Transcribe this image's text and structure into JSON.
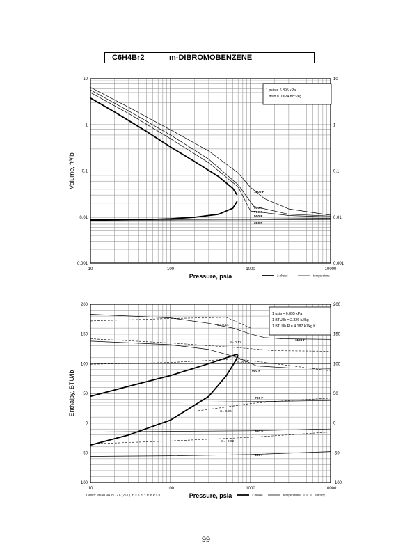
{
  "header": {
    "formula": "C6H4Br2",
    "name": "m-DIBROMOBENZENE"
  },
  "page_number": "99",
  "chart_data": [
    {
      "type": "line",
      "xlabel": "Pressure,  psia",
      "ylabel": "Volume,  ft^3/lb",
      "xscale": "log",
      "yscale": "log",
      "xlim": [
        10,
        10000
      ],
      "ylim": [
        0.001,
        10
      ],
      "x_ticks": [
        "10",
        "100",
        "1000",
        "10000"
      ],
      "y_ticks": [
        "0.001",
        "0.01",
        "0.1",
        "1",
        "10"
      ],
      "grid": true,
      "legend": {
        "position": "bottom-right",
        "entries": [
          "2 phase",
          "temperature"
        ]
      },
      "notes": [
        "1 psia  =  6.895 kPa",
        "1  ft^3/lb  =  .0624 m^3/kg"
      ],
      "curve_labels": [
        "1100 F",
        "900 F",
        "700 F",
        "500 F",
        "300 F"
      ],
      "series": [
        {
          "kind": "2-phase",
          "x": [
            10,
            20,
            50,
            100,
            200,
            400,
            600,
            680
          ],
          "y": [
            3.8,
            1.9,
            0.72,
            0.33,
            0.16,
            0.075,
            0.042,
            0.03
          ]
        },
        {
          "kind": "2-phase",
          "x": [
            10,
            50,
            100,
            200,
            400,
            600,
            680
          ],
          "y": [
            0.0085,
            0.0088,
            0.0092,
            0.0099,
            0.0115,
            0.0155,
            0.022
          ]
        },
        {
          "kind": "temperature",
          "x": [
            10,
            30,
            100,
            300,
            700,
            1000,
            1500,
            3000,
            10000
          ],
          "y": [
            6.5,
            2.4,
            0.78,
            0.27,
            0.09,
            0.044,
            0.025,
            0.015,
            0.011
          ]
        },
        {
          "kind": "temperature",
          "x": [
            10,
            30,
            100,
            300,
            700,
            1100,
            3000,
            10000
          ],
          "y": [
            5.7,
            2.0,
            0.6,
            0.18,
            0.05,
            0.017,
            0.0115,
            0.0105
          ]
        },
        {
          "kind": "temperature",
          "x": [
            10,
            30,
            100,
            300,
            700,
            1000,
            3000,
            10000
          ],
          "y": [
            5.0,
            1.75,
            0.5,
            0.15,
            0.045,
            0.0135,
            0.0108,
            0.0101
          ]
        },
        {
          "kind": "temperature",
          "x": [
            10,
            100,
            1000,
            10000
          ],
          "y": [
            0.0088,
            0.0089,
            0.0091,
            0.0094
          ]
        },
        {
          "kind": "temperature",
          "x": [
            10,
            100,
            1000,
            10000
          ],
          "y": [
            0.0085,
            0.0086,
            0.0087,
            0.0089
          ]
        }
      ]
    },
    {
      "type": "line",
      "xlabel": "Pressure,  psia",
      "ylabel": "Enthalpy,  BTU/lb",
      "xscale": "log",
      "xlim": [
        10,
        10000
      ],
      "ylim": [
        -100,
        200
      ],
      "x_ticks": [
        "10",
        "100",
        "1000",
        "10000"
      ],
      "y_ticks": [
        "-100",
        "-50",
        "0",
        "50",
        "100",
        "150",
        "200"
      ],
      "grid": true,
      "legend": {
        "position": "bottom-right",
        "entries": [
          "2 phase",
          "temperature",
          "entropy"
        ]
      },
      "notes": [
        "1 psia  =  6.895 kPa",
        "1 BTU/lb  =  2.326 kJ/kg",
        "1 BTU/lb R  =  4.187 kJ/kg K"
      ],
      "footnote": "Datum: Ideal Gas @ 77 F (25 C),  H = 0,  S + R ln P = 0",
      "curve_labels": [
        "1100 F",
        "900 F",
        "700 F",
        "500 F",
        "300 F"
      ],
      "entropy_labels": [
        "S= 0.14",
        "S= 0.12",
        "S= 0.1",
        "S= 0.06",
        "S= -0.02"
      ],
      "series": [
        {
          "kind": "2-phase",
          "x": [
            10,
            30,
            100,
            300,
            500,
            650,
            700
          ],
          "y": [
            45,
            62,
            80,
            100,
            110,
            115,
            116
          ]
        },
        {
          "kind": "2-phase",
          "x": [
            10,
            30,
            100,
            300,
            500,
            650,
            700
          ],
          "y": [
            -37,
            -20,
            5,
            45,
            80,
            105,
            114
          ]
        },
        {
          "kind": "temperature",
          "x": [
            10,
            100,
            300,
            600,
            1000,
            1500,
            2500,
            10000
          ],
          "y": [
            183,
            177,
            168,
            160,
            150,
            144,
            142,
            141
          ]
        },
        {
          "kind": "temperature",
          "x": [
            10,
            100,
            300,
            700,
            1200,
            3000,
            10000
          ],
          "y": [
            138,
            132,
            124,
            110,
            96,
            93,
            92
          ]
        },
        {
          "kind": "temperature",
          "x": [
            10,
            100,
            1000,
            10000
          ],
          "y": [
            35,
            35,
            36,
            38
          ]
        },
        {
          "kind": "temperature",
          "x": [
            10,
            100,
            1000,
            10000
          ],
          "y": [
            -15,
            -14,
            -13,
            -10
          ]
        },
        {
          "kind": "temperature",
          "x": [
            10,
            100,
            1000,
            10000
          ],
          "y": [
            -56,
            -55,
            -53,
            -48
          ]
        },
        {
          "kind": "entropy",
          "x": [
            10,
            100,
            500,
            1000
          ],
          "y": [
            172,
            176,
            178,
            160
          ]
        },
        {
          "kind": "entropy",
          "x": [
            10,
            100,
            700,
            2000,
            10000
          ],
          "y": [
            142,
            135,
            127,
            122,
            121
          ]
        },
        {
          "kind": "entropy",
          "x": [
            10,
            100,
            650,
            2000,
            10000
          ],
          "y": [
            99,
            102,
            108,
            100,
            88
          ]
        },
        {
          "kind": "entropy",
          "x": [
            200,
            500,
            1000,
            3000,
            10000
          ],
          "y": [
            20,
            27,
            33,
            38,
            42
          ]
        },
        {
          "kind": "entropy",
          "x": [
            10,
            100,
            1000,
            10000
          ],
          "y": [
            -35,
            -30,
            -24,
            -15
          ]
        }
      ]
    }
  ]
}
